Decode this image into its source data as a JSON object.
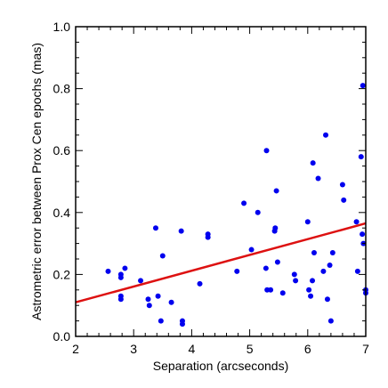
{
  "chart_data": {
    "type": "scatter",
    "title": "",
    "xlabel": "Separation (arcseconds)",
    "ylabel": "Astrometric error between Prox Cen epochs (mas)",
    "xlim": [
      2,
      7
    ],
    "ylim": [
      0.0,
      1.0
    ],
    "xticks": [
      2,
      3,
      4,
      5,
      6,
      7
    ],
    "yticks": [
      0.0,
      0.2,
      0.4,
      0.6,
      0.8,
      1.0
    ],
    "xtick_labels": [
      "2",
      "3",
      "4",
      "5",
      "6",
      "7"
    ],
    "ytick_labels": [
      "0.0",
      "0.2",
      "0.4",
      "0.6",
      "0.8",
      "1.0"
    ],
    "grid": false,
    "legend": "none",
    "colors": {
      "points": "#0000ee",
      "fit_line": "#dd1111",
      "axes": "#000000"
    },
    "series": [
      {
        "kind": "points",
        "points": [
          [
            2.56,
            0.21
          ],
          [
            2.78,
            0.19
          ],
          [
            2.78,
            0.2
          ],
          [
            2.78,
            0.13
          ],
          [
            2.78,
            0.12
          ],
          [
            2.85,
            0.22
          ],
          [
            3.12,
            0.18
          ],
          [
            3.25,
            0.12
          ],
          [
            3.27,
            0.1
          ],
          [
            3.38,
            0.35
          ],
          [
            3.42,
            0.13
          ],
          [
            3.47,
            0.05
          ],
          [
            3.5,
            0.26
          ],
          [
            3.65,
            0.11
          ],
          [
            3.82,
            0.34
          ],
          [
            3.84,
            0.05
          ],
          [
            3.84,
            0.04
          ],
          [
            4.14,
            0.17
          ],
          [
            4.28,
            0.33
          ],
          [
            4.28,
            0.32
          ],
          [
            4.78,
            0.21
          ],
          [
            4.9,
            0.43
          ],
          [
            5.03,
            0.28
          ],
          [
            5.14,
            0.4
          ],
          [
            5.28,
            0.22
          ],
          [
            5.29,
            0.6
          ],
          [
            5.3,
            0.15
          ],
          [
            5.36,
            0.15
          ],
          [
            5.43,
            0.34
          ],
          [
            5.44,
            0.35
          ],
          [
            5.46,
            0.47
          ],
          [
            5.48,
            0.24
          ],
          [
            5.57,
            0.14
          ],
          [
            5.77,
            0.2
          ],
          [
            5.79,
            0.18
          ],
          [
            6.0,
            0.37
          ],
          [
            6.02,
            0.15
          ],
          [
            6.05,
            0.13
          ],
          [
            6.08,
            0.18
          ],
          [
            6.09,
            0.56
          ],
          [
            6.11,
            0.27
          ],
          [
            6.18,
            0.51
          ],
          [
            6.27,
            0.21
          ],
          [
            6.31,
            0.65
          ],
          [
            6.34,
            0.12
          ],
          [
            6.38,
            0.23
          ],
          [
            6.4,
            0.05
          ],
          [
            6.43,
            0.27
          ],
          [
            6.6,
            0.49
          ],
          [
            6.62,
            0.44
          ],
          [
            6.84,
            0.37
          ],
          [
            6.86,
            0.21
          ],
          [
            6.92,
            0.58
          ],
          [
            6.94,
            0.33
          ],
          [
            6.95,
            0.81
          ],
          [
            6.96,
            0.3
          ],
          [
            7.0,
            0.15
          ],
          [
            7.0,
            0.14
          ]
        ]
      },
      {
        "kind": "line",
        "points": [
          [
            2.0,
            0.11
          ],
          [
            7.0,
            0.365
          ]
        ]
      }
    ]
  }
}
